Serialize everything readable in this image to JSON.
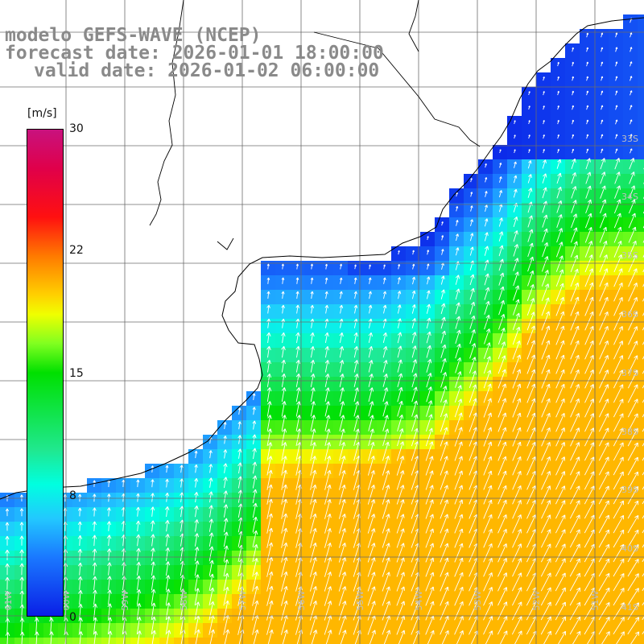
{
  "titles": {
    "line1": "modelo GEFS-WAVE (NCEP)",
    "line2": "forecast date: 2026-01-01 18:00:00",
    "line3": "valid date: 2026-01-02 06:00:00"
  },
  "colorbar": {
    "unit": "[m/s]",
    "ticks": [
      "30",
      "22",
      "15",
      "8",
      "0"
    ],
    "range": [
      0,
      30
    ],
    "colors": [
      "#0a1fe6",
      "#1a78ff",
      "#22c8ff",
      "#00ffe0",
      "#00e000",
      "#f0ff00",
      "#ff7a00",
      "#ff1010",
      "#c8127e"
    ]
  },
  "lat_labels": [
    "33S",
    "34S",
    "35S",
    "36S",
    "37S",
    "38S",
    "39S",
    "40S",
    "41S"
  ],
  "lon_labels": [
    "61W",
    "60W",
    "59W",
    "58W",
    "57W",
    "56W",
    "55W",
    "54W",
    "53W",
    "52W",
    "51W"
  ],
  "colors": {
    "land": "#ffffff",
    "coast": "#000000",
    "grid": "#6b6b6b",
    "title": "#8a8a8a"
  }
}
